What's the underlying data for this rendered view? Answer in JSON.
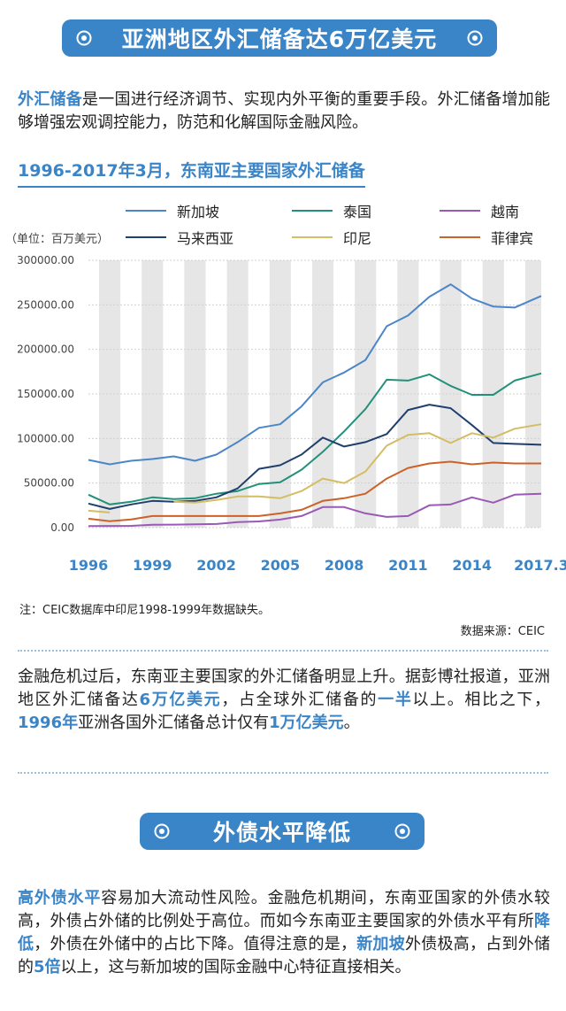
{
  "header": {
    "title": "亚洲地区外汇储备达6万亿美元"
  },
  "intro": {
    "highlight": "外汇储备",
    "text": "是一国进行经济调节、实现内外平衡的重要手段。外汇储备增加能够增强宏观调控能力，防范和化解国际金融风险。"
  },
  "chart_data": {
    "type": "line",
    "title": "1996-2017年3月，东南亚主要国家外汇储备",
    "unit_label": "（单位：百万美元）",
    "x": [
      1996,
      1997,
      1998,
      1999,
      2000,
      2001,
      2002,
      2003,
      2004,
      2005,
      2006,
      2007,
      2008,
      2009,
      2010,
      2011,
      2012,
      2013,
      2014,
      2015,
      2016,
      2017.25
    ],
    "x_ticks": [
      {
        "value": 1996,
        "label": "1996"
      },
      {
        "value": 1999,
        "label": "1999"
      },
      {
        "value": 2002,
        "label": "2002"
      },
      {
        "value": 2005,
        "label": "2005"
      },
      {
        "value": 2008,
        "label": "2008"
      },
      {
        "value": 2011,
        "label": "2011"
      },
      {
        "value": 2014,
        "label": "2014"
      },
      {
        "value": 2017.25,
        "label": "2017.3"
      }
    ],
    "y_ticks": [
      {
        "value": 0,
        "label": "0.00"
      },
      {
        "value": 50000,
        "label": "50000.00"
      },
      {
        "value": 100000,
        "label": "100000.00"
      },
      {
        "value": 150000,
        "label": "150000.00"
      },
      {
        "value": 200000,
        "label": "200000.00"
      },
      {
        "value": 250000,
        "label": "250000.00"
      },
      {
        "value": 300000,
        "label": "300000.00"
      }
    ],
    "ylim": [
      0,
      300000
    ],
    "xlim": [
      1996,
      2017.25
    ],
    "series": [
      {
        "name": "新加坡",
        "color": "#4a86c9",
        "values": [
          76000,
          71000,
          75000,
          77000,
          80000,
          75000,
          82000,
          96000,
          112000,
          116000,
          136000,
          163000,
          174000,
          188000,
          226000,
          238000,
          259000,
          273000,
          257000,
          248000,
          247000,
          260000
        ]
      },
      {
        "name": "泰国",
        "color": "#23907a",
        "values": [
          37000,
          26000,
          29000,
          34000,
          32000,
          33000,
          38000,
          41000,
          49000,
          51000,
          65000,
          85000,
          108000,
          133000,
          166000,
          165000,
          172000,
          159000,
          149000,
          149000,
          165000,
          173000
        ]
      },
      {
        "name": "越南",
        "color": "#9b59b6",
        "values": [
          1700,
          1900,
          2000,
          3300,
          3400,
          3700,
          4100,
          6200,
          7000,
          9000,
          13000,
          23000,
          23000,
          16000,
          12000,
          13000,
          25000,
          26000,
          34000,
          28000,
          37000,
          38000
        ]
      },
      {
        "name": "马来西亚",
        "color": "#1f3f6e",
        "values": [
          27000,
          21000,
          26000,
          30000,
          29000,
          30000,
          34000,
          44000,
          66000,
          70000,
          82000,
          101000,
          91000,
          96000,
          105000,
          132000,
          138000,
          134000,
          115000,
          95000,
          94000,
          93000
        ]
      },
      {
        "name": "印尼",
        "color": "#d4bd62",
        "values": [
          19000,
          17000,
          null,
          null,
          29000,
          28000,
          31000,
          35000,
          35000,
          33000,
          41000,
          55000,
          50000,
          63000,
          92000,
          104000,
          106000,
          95000,
          106000,
          101000,
          111000,
          116000
        ]
      },
      {
        "name": "菲律宾",
        "color": "#cc6228",
        "values": [
          10000,
          7300,
          9200,
          13000,
          13000,
          13000,
          13000,
          13000,
          13000,
          16000,
          20000,
          30000,
          33000,
          38000,
          55000,
          67000,
          72000,
          74000,
          71000,
          73000,
          72000,
          72000
        ]
      }
    ]
  },
  "chart_note": "注：CEIC数据库中印尼1998-1999年数据缺失。",
  "chart_source": "数据来源：CEIC",
  "para2": {
    "t1": "金融危机过后，东南亚主要国家的外汇储备明显上升。据彭博社报道，亚洲地区外汇储备达",
    "h1": "6万亿美元",
    "t2": "，占全球外汇储备的",
    "h2": "一半",
    "t3": "以上。相比之下，",
    "h3": "1996年",
    "t4": "亚洲各国外汇储备总计仅有",
    "h4": "1万亿美元",
    "t5": "。"
  },
  "section2": {
    "title": "外债水平降低"
  },
  "para3": {
    "h1": "高外债水平",
    "t1": "容易加大流动性风险。金融危机期间，东南亚国家的外债水较高，外债占外储的比例处于高位。而如今东南亚主要国家的外债水平有所",
    "h2": "降低",
    "t2": "，外债在外储中的占比下降。值得注意的是，",
    "h3": "新加坡",
    "t3": "外债极高，占到外储的",
    "h4": "5倍",
    "t4": "以上，这与新加坡的国际金融中心特征直接相关。"
  },
  "colors": {
    "accent": "#3a84c8",
    "band": "#e6e6e6"
  }
}
